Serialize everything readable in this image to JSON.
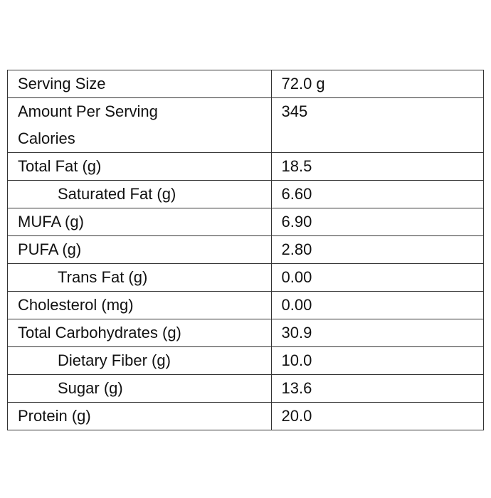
{
  "table": {
    "rows": [
      [
        "Serving Size",
        "72.0 g"
      ],
      [
        "Amount Per Serving Calories",
        "345"
      ],
      [
        "Total Fat (g)",
        "18.5"
      ],
      [
        "Saturated Fat (g)",
        "6.60"
      ],
      [
        "MUFA (g)",
        "6.90"
      ],
      [
        "PUFA (g)",
        "2.80"
      ],
      [
        "Trans Fat (g)",
        "0.00"
      ],
      [
        "Cholesterol (mg)",
        "0.00"
      ],
      [
        "Total Carbohydrates (g)",
        "30.9"
      ],
      [
        "Dietary Fiber (g)",
        "10.0"
      ],
      [
        "Sugar (g)",
        "13.6"
      ],
      [
        "Protein (g)",
        "20.0"
      ]
    ]
  }
}
